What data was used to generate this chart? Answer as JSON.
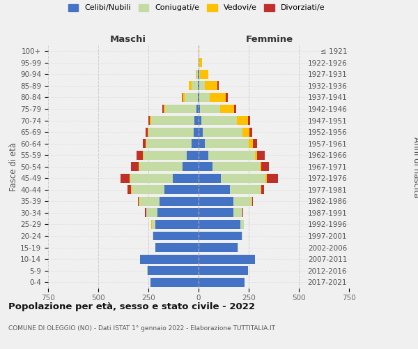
{
  "age_groups": [
    "0-4",
    "5-9",
    "10-14",
    "15-19",
    "20-24",
    "25-29",
    "30-34",
    "35-39",
    "40-44",
    "45-49",
    "50-54",
    "55-59",
    "60-64",
    "65-69",
    "70-74",
    "75-79",
    "80-84",
    "85-89",
    "90-94",
    "95-99",
    "100+"
  ],
  "birth_years": [
    "2017-2021",
    "2012-2016",
    "2007-2011",
    "2002-2006",
    "1997-2001",
    "1992-1996",
    "1987-1991",
    "1982-1986",
    "1977-1981",
    "1972-1976",
    "1967-1971",
    "1962-1966",
    "1957-1961",
    "1952-1956",
    "1947-1951",
    "1942-1946",
    "1937-1941",
    "1932-1936",
    "1927-1931",
    "1922-1926",
    "≤ 1921"
  ],
  "maschi_celibi": [
    240,
    255,
    290,
    215,
    225,
    215,
    205,
    195,
    170,
    130,
    80,
    60,
    35,
    25,
    20,
    10,
    5,
    5,
    2,
    0,
    0
  ],
  "maschi_coniugati": [
    0,
    1,
    2,
    2,
    5,
    18,
    55,
    100,
    165,
    210,
    215,
    215,
    225,
    225,
    215,
    155,
    65,
    30,
    8,
    2,
    0
  ],
  "maschi_vedovi": [
    0,
    0,
    0,
    0,
    0,
    2,
    2,
    2,
    3,
    5,
    3,
    3,
    3,
    5,
    8,
    10,
    10,
    15,
    5,
    2,
    0
  ],
  "maschi_divorziati": [
    0,
    0,
    0,
    0,
    0,
    2,
    5,
    5,
    15,
    45,
    38,
    30,
    15,
    10,
    8,
    5,
    3,
    0,
    0,
    0,
    0
  ],
  "femmine_nubili": [
    230,
    245,
    280,
    195,
    215,
    210,
    175,
    175,
    155,
    110,
    70,
    50,
    30,
    20,
    15,
    8,
    5,
    5,
    2,
    0,
    0
  ],
  "femmine_coniugate": [
    0,
    1,
    2,
    2,
    5,
    15,
    45,
    90,
    155,
    225,
    235,
    230,
    220,
    200,
    175,
    100,
    50,
    25,
    5,
    2,
    0
  ],
  "femmine_vedove": [
    0,
    0,
    0,
    0,
    0,
    0,
    0,
    2,
    3,
    5,
    8,
    10,
    20,
    35,
    55,
    70,
    80,
    65,
    40,
    15,
    2
  ],
  "femmine_divorziate": [
    0,
    0,
    0,
    0,
    0,
    2,
    3,
    5,
    15,
    55,
    38,
    40,
    20,
    12,
    12,
    10,
    10,
    5,
    0,
    0,
    0
  ],
  "colors": {
    "celibi": "#4472c4",
    "coniugati": "#c5dba4",
    "vedovi": "#ffc000",
    "divorziati": "#c0302a"
  },
  "xlim": 750,
  "title": "Popolazione per età, sesso e stato civile - 2022",
  "subtitle": "COMUNE DI OLEGGIO (NO) - Dati ISTAT 1° gennaio 2022 - Elaborazione TUTTITALIA.IT",
  "ylabel_left": "Fasce di età",
  "ylabel_right": "Anni di nascita",
  "label_maschi": "Maschi",
  "label_femmine": "Femmine",
  "bg_color": "#f0f0f0",
  "grid_color": "#cccccc",
  "legend": [
    "Celibi/Nubili",
    "Coniugati/e",
    "Vedovi/e",
    "Divorziati/e"
  ]
}
